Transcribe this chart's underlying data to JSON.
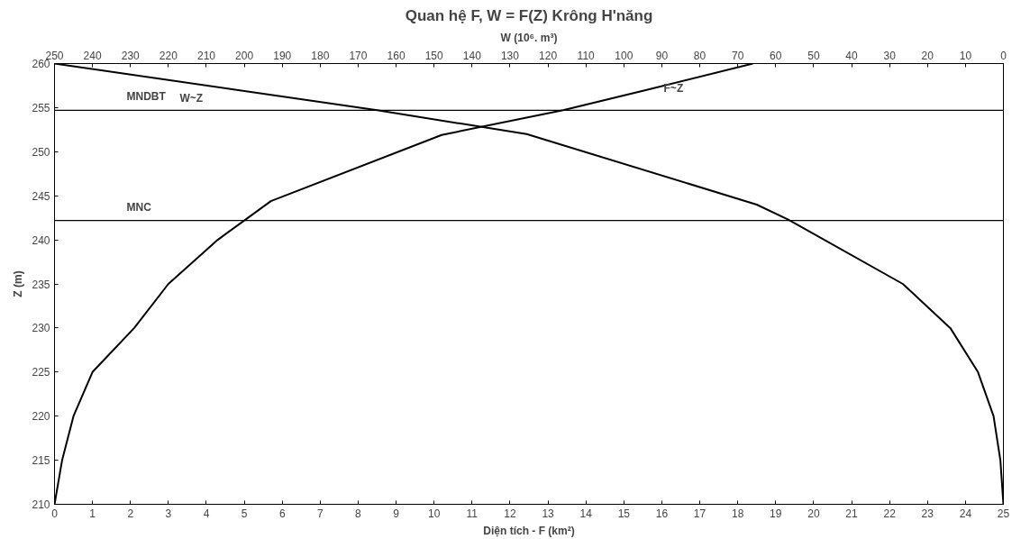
{
  "chart_data": {
    "type": "line",
    "title": "Quan hệ F, W = F(Z) Krông H'năng",
    "xlabel": "Diện tích - F (km²)",
    "x2label": "W (10⁶. m³)",
    "ylabel": "Z (m)",
    "xlim": [
      0,
      25
    ],
    "xticks": [
      0,
      1,
      2,
      3,
      4,
      5,
      6,
      7,
      8,
      9,
      10,
      11,
      12,
      13,
      14,
      15,
      16,
      17,
      18,
      19,
      20,
      21,
      22,
      23,
      24,
      25
    ],
    "x2lim": [
      250,
      0
    ],
    "x2ticks": [
      250,
      240,
      230,
      220,
      210,
      200,
      190,
      180,
      170,
      160,
      150,
      140,
      130,
      120,
      110,
      100,
      90,
      80,
      70,
      60,
      50,
      40,
      30,
      20,
      10,
      0
    ],
    "ylim": [
      210,
      260
    ],
    "yticks": [
      210,
      215,
      220,
      225,
      230,
      235,
      240,
      245,
      250,
      255,
      260
    ],
    "grid": false,
    "marker": "none",
    "line_style": "solid",
    "series": [
      {
        "name": "F~Z",
        "color": "#000000",
        "x": [
          0,
          0.2,
          0.5,
          1.0,
          2.1,
          3.0,
          4.3,
          5.0,
          5.7,
          10.2,
          13.4,
          15.6,
          18.4
        ],
        "values": [
          210,
          215,
          220,
          225,
          230,
          235,
          240,
          242.2,
          244.4,
          251.9,
          254.7,
          257,
          260
        ]
      },
      {
        "name": "W~Z",
        "color": "#000000",
        "axis": "x2",
        "x": [
          0,
          0.8,
          2.6,
          6.7,
          14,
          26.5,
          56.7,
          65,
          125.6,
          165,
          250
        ],
        "values": [
          210,
          215,
          220,
          225,
          230,
          235,
          242.3,
          244,
          252,
          254.7,
          260
        ]
      }
    ],
    "ref_lines": [
      {
        "axis": "y",
        "value": 254.7,
        "label": "MNDBT",
        "color": "#000000"
      },
      {
        "axis": "y",
        "value": 242.2,
        "label": "MNC",
        "color": "#000000"
      }
    ]
  }
}
